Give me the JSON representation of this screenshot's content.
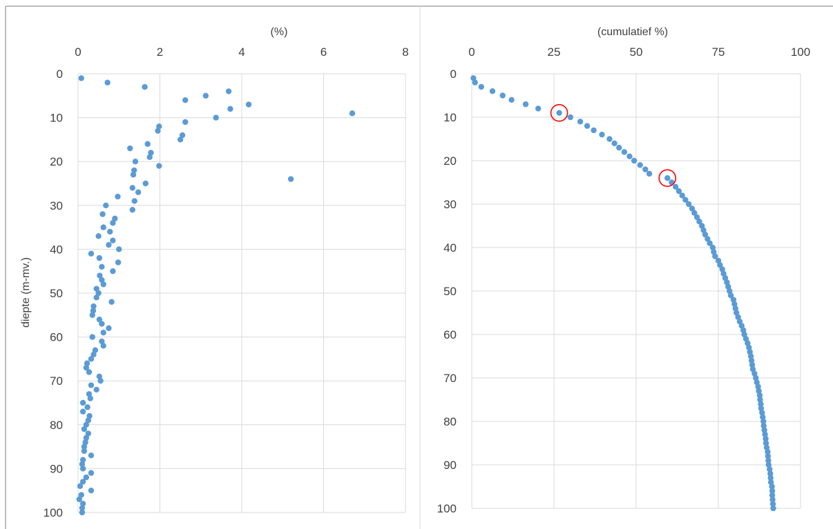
{
  "chart_data": [
    {
      "type": "scatter",
      "title": "",
      "xlabel": "(%)",
      "ylabel": "diepte (m-mv.)",
      "xlim": [
        0,
        8
      ],
      "ylim": [
        0,
        100
      ],
      "x_ticks": [
        "0",
        "2",
        "4",
        "6",
        "8"
      ],
      "y_ticks": [
        "0",
        "10",
        "20",
        "30",
        "40",
        "50",
        "60",
        "70",
        "80",
        "90",
        "100"
      ],
      "x_axis_position": "top",
      "y_inverted": true,
      "grid": true,
      "marker_color": "#5b9bd5",
      "series": [
        {
          "points": [
            [
              0.08,
              1
            ],
            [
              0.72,
              2
            ],
            [
              1.63,
              3
            ],
            [
              3.68,
              4
            ],
            [
              3.12,
              5
            ],
            [
              2.62,
              6
            ],
            [
              4.17,
              7
            ],
            [
              3.72,
              8
            ],
            [
              6.7,
              9
            ],
            [
              3.37,
              10
            ],
            [
              2.62,
              11
            ],
            [
              1.98,
              12
            ],
            [
              1.95,
              13
            ],
            [
              2.55,
              14
            ],
            [
              2.5,
              15
            ],
            [
              1.7,
              16
            ],
            [
              1.27,
              17
            ],
            [
              1.78,
              18
            ],
            [
              1.75,
              19
            ],
            [
              1.4,
              20
            ],
            [
              1.98,
              21
            ],
            [
              1.37,
              22
            ],
            [
              1.35,
              23
            ],
            [
              5.2,
              24
            ],
            [
              1.65,
              25
            ],
            [
              1.33,
              26
            ],
            [
              1.47,
              27
            ],
            [
              0.97,
              28
            ],
            [
              1.38,
              29
            ],
            [
              0.68,
              30
            ],
            [
              1.33,
              31
            ],
            [
              0.6,
              32
            ],
            [
              0.9,
              33
            ],
            [
              0.85,
              34
            ],
            [
              0.62,
              35
            ],
            [
              0.78,
              36
            ],
            [
              0.5,
              37
            ],
            [
              0.85,
              38
            ],
            [
              0.75,
              39
            ],
            [
              1.0,
              40
            ],
            [
              0.32,
              41
            ],
            [
              0.52,
              42
            ],
            [
              0.98,
              43
            ],
            [
              0.58,
              44
            ],
            [
              0.85,
              45
            ],
            [
              0.53,
              46
            ],
            [
              0.58,
              47
            ],
            [
              0.62,
              48
            ],
            [
              0.45,
              49
            ],
            [
              0.5,
              50
            ],
            [
              0.45,
              51
            ],
            [
              0.82,
              52
            ],
            [
              0.38,
              53
            ],
            [
              0.37,
              54
            ],
            [
              0.35,
              55
            ],
            [
              0.52,
              56
            ],
            [
              0.58,
              57
            ],
            [
              0.75,
              58
            ],
            [
              0.62,
              59
            ],
            [
              0.35,
              60
            ],
            [
              0.58,
              61
            ],
            [
              0.62,
              62
            ],
            [
              0.42,
              63
            ],
            [
              0.38,
              64
            ],
            [
              0.32,
              65
            ],
            [
              0.22,
              66
            ],
            [
              0.2,
              67
            ],
            [
              0.27,
              68
            ],
            [
              0.52,
              69
            ],
            [
              0.55,
              70
            ],
            [
              0.32,
              71
            ],
            [
              0.45,
              72
            ],
            [
              0.27,
              73
            ],
            [
              0.3,
              74
            ],
            [
              0.12,
              75
            ],
            [
              0.23,
              76
            ],
            [
              0.12,
              77
            ],
            [
              0.28,
              78
            ],
            [
              0.25,
              79
            ],
            [
              0.2,
              80
            ],
            [
              0.15,
              81
            ],
            [
              0.25,
              82
            ],
            [
              0.2,
              83
            ],
            [
              0.18,
              84
            ],
            [
              0.15,
              85
            ],
            [
              0.15,
              86
            ],
            [
              0.32,
              87
            ],
            [
              0.12,
              88
            ],
            [
              0.1,
              89
            ],
            [
              0.12,
              90
            ],
            [
              0.32,
              91
            ],
            [
              0.2,
              92
            ],
            [
              0.12,
              93
            ],
            [
              0.05,
              94
            ],
            [
              0.32,
              95
            ],
            [
              0.08,
              96
            ],
            [
              0.03,
              97
            ],
            [
              0.12,
              98
            ],
            [
              0.1,
              99
            ],
            [
              0.1,
              100
            ]
          ]
        }
      ]
    },
    {
      "type": "scatter",
      "title": "",
      "xlabel": "(cumulatief %)",
      "ylabel": "",
      "xlim": [
        0,
        100
      ],
      "ylim": [
        0,
        100
      ],
      "x_ticks": [
        "0",
        "25",
        "50",
        "75",
        "100"
      ],
      "y_ticks": [
        "0",
        "10",
        "20",
        "30",
        "40",
        "50",
        "60",
        "70",
        "80",
        "90",
        "100"
      ],
      "x_axis_position": "top",
      "y_inverted": true,
      "grid": true,
      "marker_color": "#5b9bd5",
      "highlight_color": "#ff0000",
      "highlighted": [
        [
          26.6,
          9
        ],
        [
          59.5,
          24
        ]
      ],
      "series": [
        {
          "points": [
            [
              0.5,
              1
            ],
            [
              1,
              2
            ],
            [
              2.9,
              3
            ],
            [
              6.3,
              4
            ],
            [
              9.4,
              5
            ],
            [
              12.1,
              6
            ],
            [
              16.4,
              7
            ],
            [
              20.2,
              8
            ],
            [
              26.6,
              9
            ],
            [
              30,
              10
            ],
            [
              33,
              11
            ],
            [
              35.1,
              12
            ],
            [
              37.1,
              13
            ],
            [
              39.6,
              14
            ],
            [
              41.9,
              15
            ],
            [
              43.4,
              16
            ],
            [
              44.8,
              17
            ],
            [
              46.4,
              18
            ],
            [
              48,
              19
            ],
            [
              49.4,
              20
            ],
            [
              51.2,
              21
            ],
            [
              52.8,
              22
            ],
            [
              54,
              23
            ],
            [
              59.5,
              24
            ],
            [
              60.8,
              25
            ],
            [
              62,
              26
            ],
            [
              63,
              27
            ],
            [
              64,
              28
            ],
            [
              65,
              29
            ],
            [
              66,
              30
            ],
            [
              67,
              31
            ],
            [
              67.7,
              32
            ],
            [
              68.5,
              33
            ],
            [
              69.2,
              34
            ],
            [
              70,
              35
            ],
            [
              70.5,
              36
            ],
            [
              71,
              37
            ],
            [
              71.7,
              38
            ],
            [
              72.4,
              39
            ],
            [
              73.3,
              40
            ],
            [
              73.6,
              41
            ],
            [
              74,
              42
            ],
            [
              75,
              43
            ],
            [
              75.5,
              44
            ],
            [
              76.2,
              45
            ],
            [
              76.6,
              46
            ],
            [
              77.1,
              47
            ],
            [
              77.6,
              48
            ],
            [
              78,
              49
            ],
            [
              78.4,
              50
            ],
            [
              78.8,
              51
            ],
            [
              79.6,
              52
            ],
            [
              79.9,
              53
            ],
            [
              80.2,
              54
            ],
            [
              80.5,
              55
            ],
            [
              81,
              56
            ],
            [
              81.5,
              57
            ],
            [
              82.1,
              58
            ],
            [
              82.6,
              59
            ],
            [
              82.9,
              60
            ],
            [
              83.4,
              61
            ],
            [
              83.9,
              62
            ],
            [
              84.3,
              63
            ],
            [
              84.6,
              64
            ],
            [
              84.9,
              65
            ],
            [
              85.1,
              66
            ],
            [
              85.3,
              67
            ],
            [
              85.5,
              68
            ],
            [
              86,
              69
            ],
            [
              86.4,
              70
            ],
            [
              86.7,
              71
            ],
            [
              87.1,
              72
            ],
            [
              87.3,
              73
            ],
            [
              87.6,
              74
            ],
            [
              87.7,
              75
            ],
            [
              87.9,
              76
            ],
            [
              88,
              77
            ],
            [
              88.3,
              78
            ],
            [
              88.5,
              79
            ],
            [
              88.7,
              80
            ],
            [
              88.8,
              81
            ],
            [
              89,
              82
            ],
            [
              89.2,
              83
            ],
            [
              89.4,
              84
            ],
            [
              89.5,
              85
            ],
            [
              89.7,
              86
            ],
            [
              90,
              87
            ],
            [
              90.1,
              88
            ],
            [
              90.2,
              89
            ],
            [
              90.3,
              90
            ],
            [
              90.6,
              91
            ],
            [
              90.8,
              92
            ],
            [
              90.9,
              93
            ],
            [
              91,
              94
            ],
            [
              91.3,
              95
            ],
            [
              91.4,
              96
            ],
            [
              91.4,
              97
            ],
            [
              91.5,
              98
            ],
            [
              91.6,
              99
            ],
            [
              91.7,
              100
            ]
          ]
        }
      ]
    }
  ]
}
